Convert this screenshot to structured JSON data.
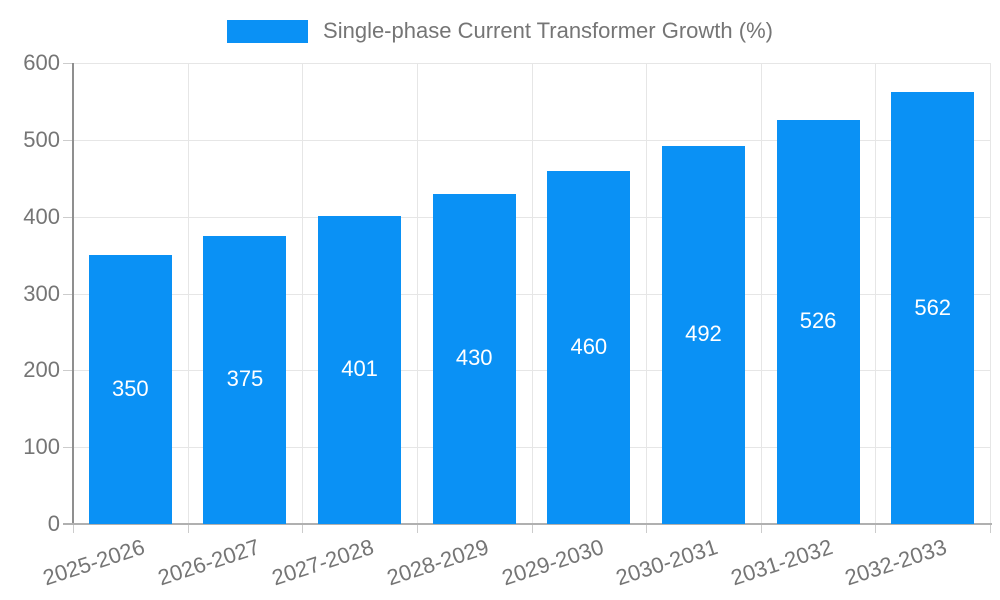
{
  "legend": {
    "label": "Single-phase Current Transformer Growth (%)"
  },
  "colors": {
    "bar": "#0a91f5",
    "axis_text": "#757575",
    "grid": "#e6e6e6",
    "y_axis_line": "#8f8f8f",
    "x_axis_line": "#b0b0b0",
    "value_label": "#ffffff"
  },
  "chart_data": {
    "type": "bar",
    "title": "Single-phase Current Transformer Growth (%)",
    "categories": [
      "2025-2026",
      "2026-2027",
      "2027-2028",
      "2028-2029",
      "2029-2030",
      "2030-2031",
      "2031-2032",
      "2032-2033"
    ],
    "values": [
      350,
      375,
      401,
      430,
      460,
      492,
      526,
      562
    ],
    "xlabel": "",
    "ylabel": "",
    "ylim": [
      0,
      600
    ],
    "yticks": [
      0,
      100,
      200,
      300,
      400,
      500,
      600
    ],
    "grid": true,
    "legend_position": "top-center",
    "value_labels": "inside-middle",
    "x_label_rotation_deg": -18
  }
}
